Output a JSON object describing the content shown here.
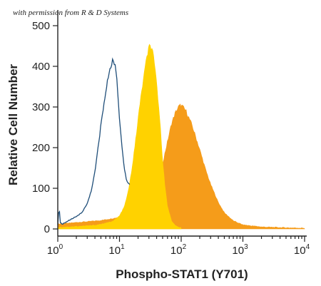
{
  "watermark": "with permission from R & D Systems",
  "colors": {
    "outline_series": "#1f4e79",
    "yellow_series": "#ffd200",
    "orange_series": "#f59c1a",
    "axis": "#222222"
  },
  "chart_data": {
    "type": "area",
    "title": "",
    "xlabel": "Phospho-STAT1 (Y701)",
    "ylabel": "Relative Cell Number",
    "x_scale": "log",
    "xlim": [
      1,
      10000
    ],
    "ylim": [
      0,
      500
    ],
    "x_ticks": [
      {
        "value": 1,
        "base": "10",
        "exp": "0"
      },
      {
        "value": 10,
        "base": "10",
        "exp": "1"
      },
      {
        "value": 100,
        "base": "10",
        "exp": "2"
      },
      {
        "value": 1000,
        "base": "10",
        "exp": "3"
      },
      {
        "value": 10000,
        "base": "10",
        "exp": "4"
      }
    ],
    "y_ticks": [
      0,
      100,
      200,
      300,
      400,
      500
    ],
    "grid": false,
    "legend": "none",
    "series": [
      {
        "style": "filled",
        "color": "#f59c1a",
        "x": [
          1,
          1.5,
          2,
          3,
          5,
          8,
          12,
          18,
          25,
          30,
          35,
          40,
          50,
          60,
          70,
          80,
          90,
          100,
          120,
          150,
          200,
          250,
          300,
          400,
          500,
          700,
          1000,
          2000,
          5000,
          10000
        ],
        "y": [
          12,
          14,
          16,
          18,
          21,
          26,
          32,
          40,
          55,
          68,
          85,
          110,
          160,
          215,
          260,
          285,
          300,
          305,
          290,
          255,
          195,
          145,
          110,
          65,
          40,
          20,
          10,
          5,
          3,
          2
        ]
      },
      {
        "style": "filled",
        "color": "#ffd200",
        "x": [
          1,
          2,
          4,
          6,
          8,
          10,
          12,
          14,
          16,
          18,
          20,
          22,
          25,
          28,
          30,
          32,
          35,
          40,
          45,
          50,
          55,
          60,
          70,
          80,
          100
        ],
        "y": [
          4,
          6,
          9,
          14,
          20,
          32,
          55,
          95,
          150,
          210,
          270,
          320,
          380,
          425,
          448,
          450,
          430,
          360,
          270,
          170,
          100,
          55,
          20,
          8,
          2
        ]
      },
      {
        "style": "outline",
        "color": "#1f4e79",
        "x": [
          1,
          1.05,
          1.1,
          1.2,
          1.4,
          1.7,
          2,
          2.5,
          3,
          3.5,
          4,
          4.5,
          5,
          5.5,
          6,
          6.5,
          7,
          7.5,
          8,
          8.5,
          9,
          9.5,
          10,
          11,
          12,
          13,
          14,
          15
        ],
        "y": [
          10,
          55,
          15,
          12,
          18,
          25,
          30,
          42,
          62,
          95,
          140,
          200,
          255,
          300,
          335,
          370,
          395,
          408,
          415,
          405,
          370,
          320,
          270,
          200,
          150,
          120,
          112,
          108
        ]
      }
    ]
  }
}
